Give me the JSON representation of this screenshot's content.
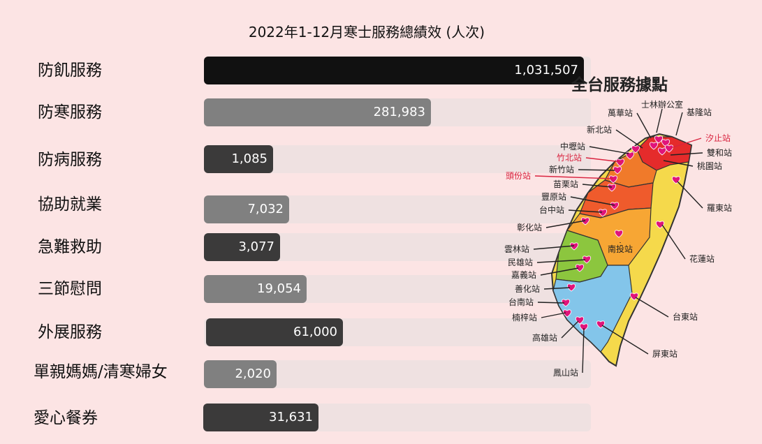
{
  "colors": {
    "background": "#fce4e4",
    "track": "#efe1e1",
    "black": "#111111",
    "dark": "#3b3a3a",
    "gray": "#808080",
    "red_label": "#d9233f"
  },
  "chart_data": {
    "type": "bar",
    "title": "2022年1-12月寒士服務總績效 (人次)",
    "categories": [
      "防飢服務",
      "防寒服務",
      "防病服務",
      "協助就業",
      "急難救助",
      "三節慰問",
      "外展服務",
      "單親媽媽/清寒婦女",
      "愛心餐券"
    ],
    "values": [
      1031507,
      281983,
      1085,
      7032,
      3077,
      19054,
      61000,
      2020,
      31631
    ],
    "value_labels": [
      "1,031,507",
      "281,983",
      "1,085",
      "7,032",
      "3,077",
      "19,054",
      "61,000",
      "2,020",
      "31,631"
    ],
    "bar_colors": [
      "#111111",
      "#808080",
      "#3b3a3a",
      "#808080",
      "#3b3a3a",
      "#808080",
      "#3b3a3a",
      "#808080",
      "#3b3a3a"
    ]
  },
  "map": {
    "title": "全台服務據點",
    "stations": [
      "士林辦公室",
      "萬華站",
      "基隆站",
      "新北站",
      "汐止站",
      "中壢站",
      "雙和站",
      "竹北站",
      "桃園站",
      "新竹站",
      "頭份站",
      "苗栗站",
      "豐原站",
      "台中站",
      "羅東站",
      "彰化站",
      "南投站",
      "雲林站",
      "花蓮站",
      "民雄站",
      "嘉義站",
      "善化站",
      "台南站",
      "台東站",
      "楠梓站",
      "高雄站",
      "屏東站",
      "鳳山站"
    ],
    "highlight_stations": [
      "汐止站",
      "竹北站",
      "頭份站"
    ]
  }
}
